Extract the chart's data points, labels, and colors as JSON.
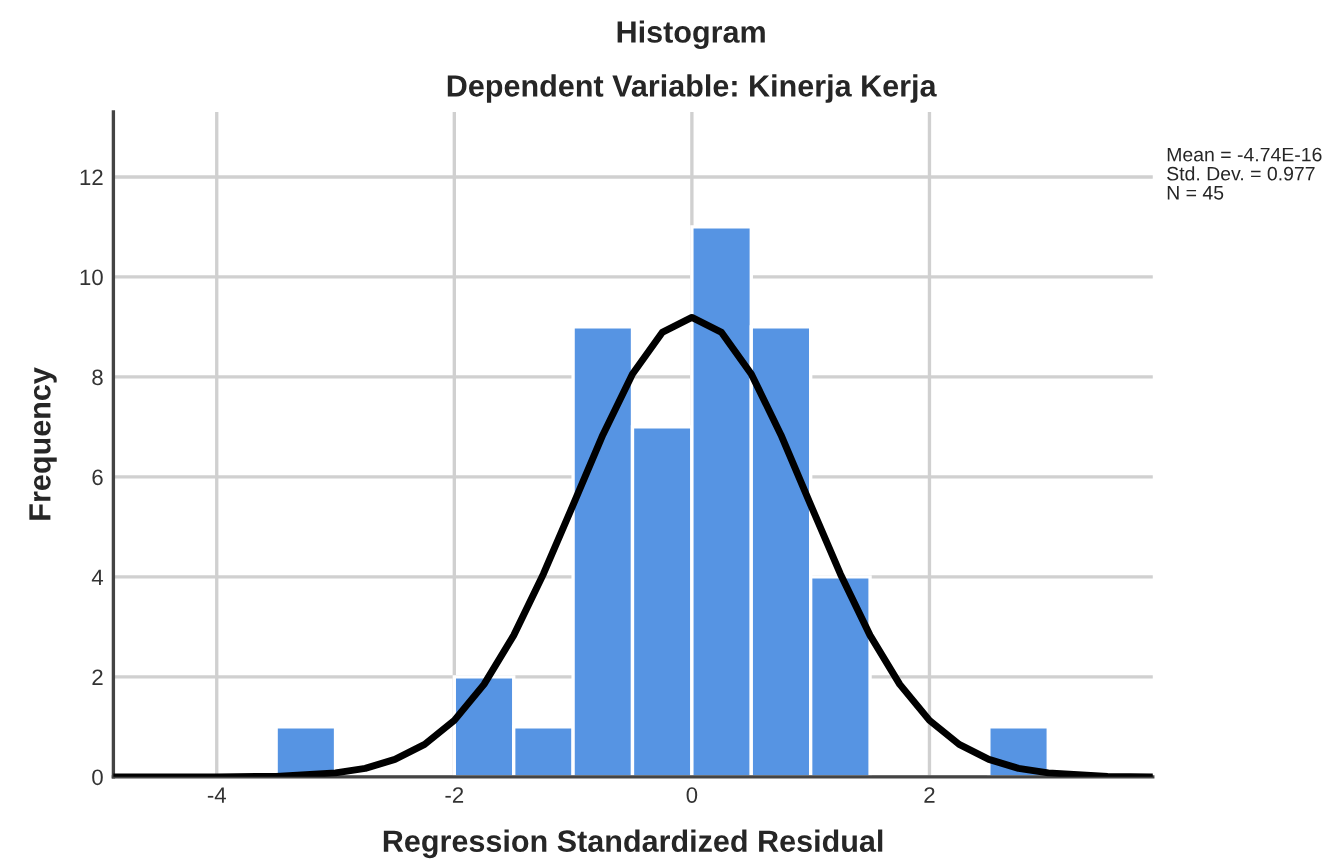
{
  "chart_data": {
    "type": "histogram",
    "title": "Histogram",
    "subtitle": "Dependent Variable: Kinerja Kerja",
    "xlabel": "Regression Standardized Residual",
    "ylabel": "Frequency",
    "bins": [
      -3.5,
      -3.0,
      -2.5,
      -2.0,
      -1.5,
      -1.0,
      -0.5,
      0.0,
      0.5,
      1.0,
      1.5,
      2.0,
      2.5,
      3.0
    ],
    "values": [
      1,
      0,
      0,
      2,
      1,
      9,
      7,
      11,
      9,
      4,
      0,
      0,
      1
    ],
    "color": "#5694e3",
    "series": [
      {
        "type": "line",
        "color": "#000000",
        "x": [
          -4.87,
          -4.5,
          -4.0,
          -3.5,
          -3.0,
          -2.75,
          -2.5,
          -2.25,
          -2.0,
          -1.75,
          -1.5,
          -1.25,
          -1.0,
          -0.75,
          -0.5,
          -0.25,
          0.0,
          0.25,
          0.5,
          0.75,
          1.0,
          1.25,
          1.5,
          1.75,
          2.0,
          2.25,
          2.5,
          2.75,
          3.0,
          3.5,
          3.88
        ],
        "values": [
          0.0,
          0.0,
          0.0,
          0.01,
          0.08,
          0.17,
          0.35,
          0.65,
          1.13,
          1.85,
          2.83,
          4.06,
          5.44,
          6.84,
          8.06,
          8.89,
          9.19,
          8.89,
          8.06,
          6.84,
          5.44,
          4.06,
          2.83,
          1.85,
          1.13,
          0.65,
          0.35,
          0.17,
          0.08,
          0.01,
          0.0
        ]
      }
    ],
    "xlim": [
      -4.87,
      3.88
    ],
    "xticks": [
      -4,
      -2,
      0,
      2
    ],
    "ylim": [
      0,
      13.3
    ],
    "yticks": [
      0,
      2,
      4,
      6,
      8,
      10,
      12
    ],
    "grid": true,
    "annotations": [
      "Mean = -4.74E-16",
      "Std. Dev. = 0.977",
      "N = 45"
    ]
  }
}
